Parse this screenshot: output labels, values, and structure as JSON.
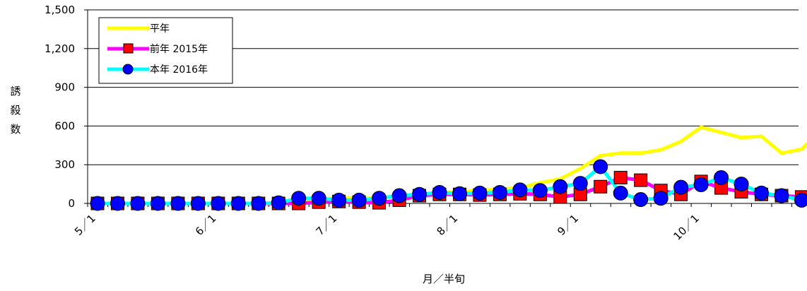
{
  "chart_data": {
    "type": "line",
    "xlabel": "月／半旬",
    "ylabel": "誘殺数",
    "ylim": [
      0,
      1500
    ],
    "y_ticks": [
      "0",
      "300",
      "600",
      "900",
      "1,200",
      "1,500"
    ],
    "x_tick_labels": [
      "5／1",
      "6／1",
      "7／1",
      "8／1",
      "9／1",
      "10／1"
    ],
    "grid": "horizontal",
    "legend_position": "top-left",
    "colors": {
      "平年": "#ffff00",
      "前年 2015年": "#ff00ff",
      "本年 2016年": "#00ffff",
      "square_marker": "#ff0000",
      "circle_marker": "#0000ff"
    },
    "series": [
      {
        "name": "平年",
        "values": [
          0,
          0,
          0,
          0,
          0,
          0,
          0,
          0,
          0,
          0,
          10,
          35,
          40,
          40,
          40,
          60,
          70,
          80,
          90,
          100,
          110,
          120,
          160,
          190,
          270,
          370,
          390,
          390,
          415,
          480,
          590,
          550,
          510,
          520,
          390,
          420,
          570
        ]
      },
      {
        "name": "前年 2015年",
        "values": [
          0,
          0,
          0,
          0,
          0,
          0,
          0,
          0,
          0,
          0,
          0,
          10,
          15,
          10,
          5,
          25,
          60,
          70,
          70,
          65,
          70,
          75,
          70,
          50,
          70,
          130,
          200,
          180,
          100,
          70,
          170,
          120,
          90,
          70,
          60,
          50,
          70
        ]
      },
      {
        "name": "本年 2016年",
        "values": [
          0,
          0,
          0,
          0,
          0,
          0,
          0,
          0,
          0,
          5,
          40,
          40,
          25,
          25,
          40,
          60,
          70,
          85,
          75,
          80,
          85,
          105,
          100,
          130,
          155,
          285,
          80,
          30,
          40,
          125,
          145,
          200,
          150,
          80,
          60,
          25,
          0
        ]
      }
    ]
  }
}
